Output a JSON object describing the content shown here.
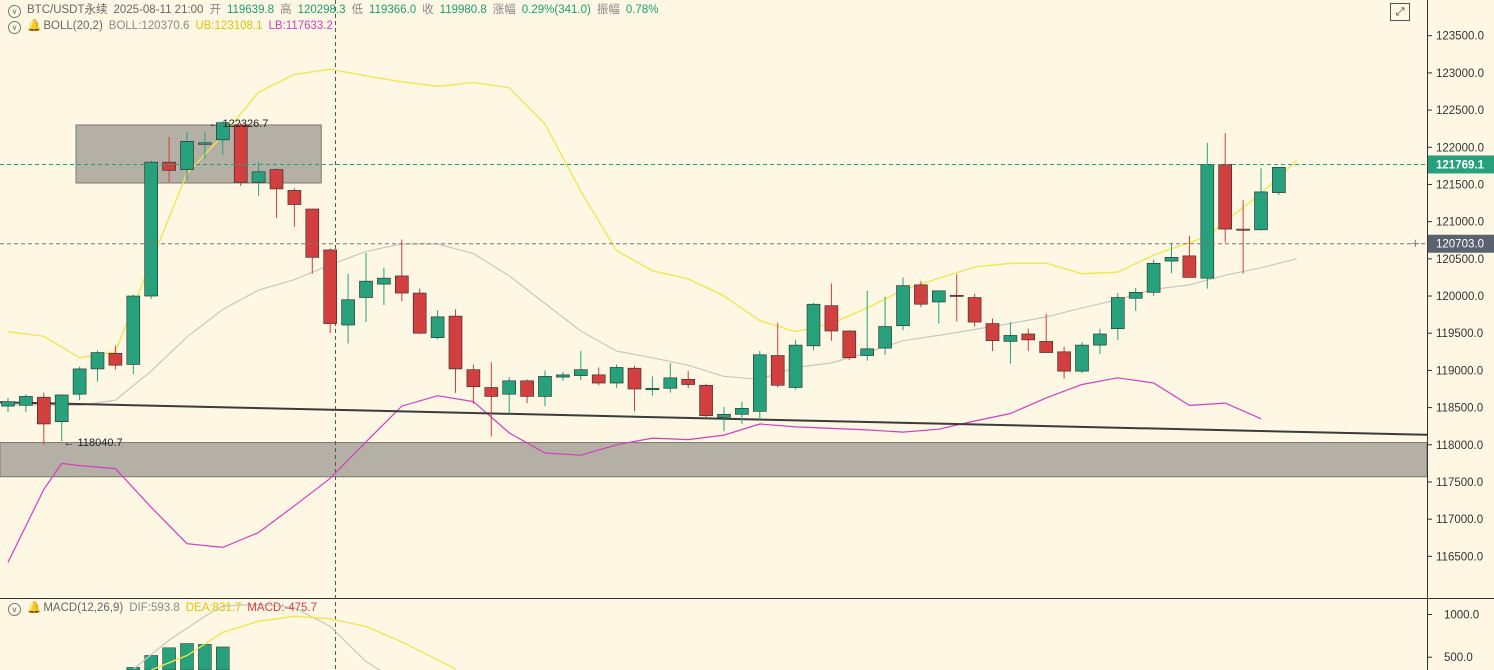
{
  "header": {
    "symbol": "BTC/USDT永续",
    "datetime": "2025-08-11 21:00",
    "open_label": "开",
    "open": "119639.8",
    "high_label": "高",
    "high": "120298.3",
    "low_label": "低",
    "low": "119366.0",
    "close_label": "收",
    "close": "119980.8",
    "change_label": "涨幅",
    "change": "0.29%(341.0)",
    "amp_label": "振幅",
    "amp": "0.78%"
  },
  "indicators": {
    "boll": {
      "name": "BOLL(20,2)",
      "mid": "BOLL:120370.6",
      "ub": "UB:123108.1",
      "lb": "LB:117633.2"
    },
    "macd": {
      "name": "MACD(12,26,9)",
      "dif": "DIF:593.8",
      "dea": "DEA:831.7",
      "macd": "MACD:-475.7"
    }
  },
  "colors": {
    "up": "#26a17b",
    "down": "#d23f3f",
    "ub": "#f2e64a",
    "mid": "#c8c8bf",
    "lb": "#d23fbf",
    "dea": "#f2e64a",
    "dif": "#c8c8bf",
    "zone": "#a8a39a"
  },
  "chart_data": {
    "type": "candlestick",
    "yticks": [
      123500,
      123000,
      122500,
      122000,
      121500,
      121000,
      120500,
      120000,
      119500,
      119000,
      118500,
      118000,
      117500,
      117000,
      116500
    ],
    "ylim": [
      115940,
      123980
    ],
    "hlines": {
      "current_price": "121769.1",
      "cursor_price": "120703.0"
    },
    "annotations": {
      "high_mark": "122326.7",
      "low_mark": "118040.7"
    },
    "zones": [
      {
        "y": [
          121520,
          122300
        ]
      },
      {
        "y": [
          117570,
          118030
        ]
      }
    ],
    "trendline": {
      "from": [
        0,
        118570
      ],
      "to": [
        71,
        118180
      ]
    },
    "candles": [
      [
        118520,
        118630,
        118440,
        118580
      ],
      [
        118530,
        118680,
        118440,
        118650
      ],
      [
        118640,
        118700,
        118000,
        118280
      ],
      [
        118310,
        118680,
        118050,
        118670
      ],
      [
        118680,
        119050,
        118600,
        119020
      ],
      [
        119020,
        119270,
        118850,
        119240
      ],
      [
        119230,
        119330,
        119010,
        119070
      ],
      [
        119080,
        120020,
        118950,
        120000
      ],
      [
        120000,
        121820,
        119960,
        121800
      ],
      [
        121800,
        122140,
        121530,
        121690
      ],
      [
        121700,
        122210,
        121560,
        122080
      ],
      [
        122040,
        122210,
        121850,
        122060
      ],
      [
        122100,
        122350,
        121900,
        122330
      ],
      [
        122300,
        122330,
        121480,
        121530
      ],
      [
        121530,
        121800,
        121350,
        121670
      ],
      [
        121700,
        121720,
        121050,
        121440
      ],
      [
        121420,
        121450,
        120930,
        121230
      ],
      [
        121170,
        121170,
        120300,
        120520
      ],
      [
        120620,
        120640,
        119500,
        119630
      ],
      [
        119610,
        120300,
        119360,
        119950
      ],
      [
        119980,
        120580,
        119650,
        120200
      ],
      [
        120160,
        120380,
        119880,
        120240
      ],
      [
        120270,
        120760,
        119930,
        120040
      ],
      [
        120040,
        120100,
        119490,
        119500
      ],
      [
        119440,
        119810,
        119420,
        119720
      ],
      [
        119730,
        119820,
        118700,
        119020
      ],
      [
        119010,
        119080,
        118550,
        118780
      ],
      [
        118770,
        119110,
        118110,
        118650
      ],
      [
        118680,
        118910,
        118420,
        118860
      ],
      [
        118860,
        118880,
        118560,
        118650
      ],
      [
        118650,
        119000,
        118520,
        118920
      ],
      [
        118910,
        118980,
        118860,
        118940
      ],
      [
        118930,
        119260,
        118870,
        119010
      ],
      [
        118940,
        119040,
        118800,
        118830
      ],
      [
        118830,
        119080,
        118760,
        119040
      ],
      [
        119030,
        119060,
        118450,
        118750
      ],
      [
        118740,
        118920,
        118660,
        118760
      ],
      [
        118760,
        119100,
        118700,
        118900
      ],
      [
        118880,
        118990,
        118760,
        118810
      ],
      [
        118800,
        118820,
        118370,
        118390
      ],
      [
        118370,
        118510,
        118180,
        118410
      ],
      [
        118410,
        118580,
        118280,
        118490
      ],
      [
        118450,
        119260,
        118320,
        119210
      ],
      [
        119200,
        119640,
        118770,
        118800
      ],
      [
        118770,
        119410,
        118740,
        119340
      ],
      [
        119330,
        119910,
        119270,
        119890
      ],
      [
        119870,
        120170,
        119400,
        119530
      ],
      [
        119530,
        119540,
        119140,
        119170
      ],
      [
        119200,
        120070,
        119130,
        119290
      ],
      [
        119300,
        119990,
        119210,
        119590
      ],
      [
        119600,
        120250,
        119540,
        120140
      ],
      [
        120150,
        120200,
        119850,
        119890
      ],
      [
        119920,
        120050,
        119630,
        120070
      ],
      [
        120010,
        120290,
        119660,
        120000
      ],
      [
        119980,
        120030,
        119590,
        119650
      ],
      [
        119630,
        119700,
        119260,
        119400
      ],
      [
        119390,
        119650,
        119090,
        119470
      ],
      [
        119490,
        119560,
        119260,
        119410
      ],
      [
        119390,
        119760,
        119250,
        119240
      ],
      [
        119250,
        119320,
        118890,
        118990
      ],
      [
        118990,
        119380,
        118960,
        119340
      ],
      [
        119340,
        119560,
        119220,
        119490
      ],
      [
        119560,
        120040,
        119410,
        119980
      ],
      [
        119970,
        120110,
        119800,
        120050
      ],
      [
        120050,
        120490,
        120000,
        120440
      ],
      [
        120470,
        120710,
        120310,
        120520
      ],
      [
        120540,
        120810,
        120250,
        120250
      ],
      [
        120240,
        122060,
        120100,
        121770
      ],
      [
        121770,
        122190,
        120720,
        120900
      ],
      [
        120900,
        121290,
        120300,
        120890
      ],
      [
        120890,
        121720,
        120880,
        121400
      ],
      [
        121390,
        121730,
        121360,
        121730
      ]
    ],
    "boll_ub": [
      [
        0,
        119520
      ],
      [
        2,
        119460
      ],
      [
        4,
        119170
      ],
      [
        6,
        119250
      ],
      [
        8,
        120460
      ],
      [
        10,
        121650
      ],
      [
        12,
        122160
      ],
      [
        14,
        122740
      ],
      [
        16,
        122980
      ],
      [
        18,
        123050
      ],
      [
        20,
        122960
      ],
      [
        22,
        122880
      ],
      [
        24,
        122820
      ],
      [
        26,
        122870
      ],
      [
        28,
        122800
      ],
      [
        30,
        122310
      ],
      [
        32,
        121410
      ],
      [
        34,
        120610
      ],
      [
        36,
        120340
      ],
      [
        38,
        120230
      ],
      [
        40,
        120000
      ],
      [
        42,
        119670
      ],
      [
        44,
        119520
      ],
      [
        46,
        119630
      ],
      [
        48,
        119840
      ],
      [
        50,
        120080
      ],
      [
        52,
        120240
      ],
      [
        54,
        120390
      ],
      [
        56,
        120440
      ],
      [
        58,
        120440
      ],
      [
        60,
        120300
      ],
      [
        62,
        120320
      ],
      [
        64,
        120550
      ],
      [
        66,
        120720
      ],
      [
        67,
        120800
      ],
      [
        68,
        121000
      ],
      [
        70,
        121380
      ],
      [
        72,
        121820
      ]
    ],
    "boll_mid": [
      [
        0,
        118540
      ],
      [
        4,
        118530
      ],
      [
        6,
        118600
      ],
      [
        8,
        118990
      ],
      [
        10,
        119450
      ],
      [
        12,
        119820
      ],
      [
        14,
        120080
      ],
      [
        16,
        120220
      ],
      [
        18,
        120420
      ],
      [
        20,
        120600
      ],
      [
        22,
        120700
      ],
      [
        24,
        120700
      ],
      [
        26,
        120570
      ],
      [
        28,
        120270
      ],
      [
        30,
        119900
      ],
      [
        32,
        119530
      ],
      [
        34,
        119260
      ],
      [
        36,
        119170
      ],
      [
        38,
        119070
      ],
      [
        40,
        118920
      ],
      [
        42,
        118880
      ],
      [
        44,
        119040
      ],
      [
        46,
        119100
      ],
      [
        48,
        119240
      ],
      [
        50,
        119400
      ],
      [
        52,
        119470
      ],
      [
        54,
        119550
      ],
      [
        56,
        119630
      ],
      [
        58,
        119720
      ],
      [
        60,
        119840
      ],
      [
        62,
        119950
      ],
      [
        64,
        120090
      ],
      [
        66,
        120150
      ],
      [
        68,
        120280
      ],
      [
        70,
        120380
      ],
      [
        72,
        120500
      ]
    ],
    "boll_lb": [
      [
        0,
        116420
      ],
      [
        2,
        117400
      ],
      [
        3,
        117750
      ],
      [
        4,
        117720
      ],
      [
        6,
        117680
      ],
      [
        8,
        117160
      ],
      [
        10,
        116670
      ],
      [
        12,
        116620
      ],
      [
        14,
        116820
      ],
      [
        16,
        117180
      ],
      [
        18,
        117550
      ],
      [
        20,
        118040
      ],
      [
        22,
        118520
      ],
      [
        24,
        118660
      ],
      [
        26,
        118580
      ],
      [
        28,
        118160
      ],
      [
        30,
        117890
      ],
      [
        32,
        117860
      ],
      [
        34,
        118000
      ],
      [
        36,
        118090
      ],
      [
        38,
        118070
      ],
      [
        40,
        118130
      ],
      [
        42,
        118280
      ],
      [
        44,
        118240
      ],
      [
        46,
        118220
      ],
      [
        48,
        118200
      ],
      [
        50,
        118170
      ],
      [
        52,
        118210
      ],
      [
        54,
        118320
      ],
      [
        56,
        118420
      ],
      [
        58,
        118630
      ],
      [
        60,
        118810
      ],
      [
        62,
        118900
      ],
      [
        64,
        118830
      ],
      [
        66,
        118530
      ],
      [
        68,
        118560
      ],
      [
        70,
        118350
      ]
    ],
    "macd_panel": {
      "yticks": [
        1000.0,
        500.0
      ],
      "ylim": [
        350,
        1170
      ],
      "dea": [
        [
          8,
          350
        ],
        [
          10,
          520
        ],
        [
          12,
          790
        ],
        [
          14,
          920
        ],
        [
          16,
          980
        ],
        [
          18,
          950
        ],
        [
          20,
          860
        ],
        [
          22,
          680
        ],
        [
          24,
          470
        ],
        [
          25,
          360
        ]
      ],
      "dif": [
        [
          7,
          360
        ],
        [
          9,
          700
        ],
        [
          11,
          980
        ],
        [
          12,
          1100
        ],
        [
          14,
          1120
        ],
        [
          16,
          1080
        ],
        [
          18,
          860
        ],
        [
          20,
          450
        ],
        [
          21,
          320
        ]
      ],
      "hist": [
        [
          7,
          380
        ],
        [
          8,
          520
        ],
        [
          9,
          610
        ],
        [
          10,
          660
        ],
        [
          11,
          650
        ],
        [
          12,
          620
        ]
      ]
    }
  }
}
